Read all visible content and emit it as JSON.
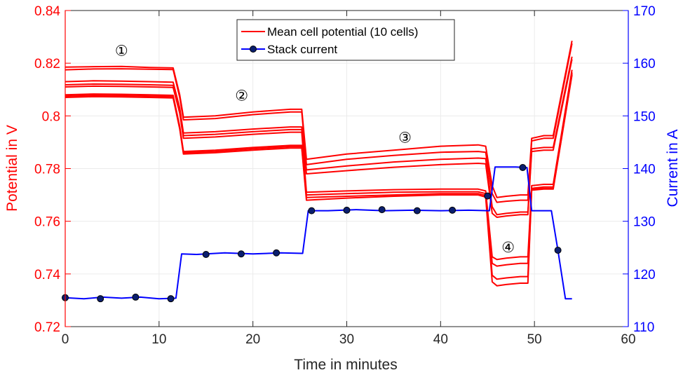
{
  "chart_data": {
    "type": "line",
    "title": "",
    "xlabel": "Time in minutes",
    "ylabel_left": "Potential in V",
    "ylabel_right": "Current in A",
    "xlim": [
      0,
      60
    ],
    "ylim_left": [
      0.72,
      0.84
    ],
    "ylim_right": [
      110,
      170
    ],
    "x_ticks": [
      "0",
      "10",
      "20",
      "30",
      "40",
      "50",
      "60"
    ],
    "y_left_ticks": [
      "0.72",
      "0.74",
      "0.76",
      "0.78",
      "0.8",
      "0.82",
      "0.84"
    ],
    "y_right_ticks": [
      "110",
      "120",
      "130",
      "140",
      "150",
      "160",
      "170"
    ],
    "x_tick_values": [
      0,
      10,
      20,
      30,
      40,
      50,
      60
    ],
    "y_left_tick_values": [
      0.72,
      0.74,
      0.76,
      0.78,
      0.8,
      0.82,
      0.84
    ],
    "y_right_tick_values": [
      110,
      120,
      130,
      140,
      150,
      160,
      170
    ],
    "grid": true,
    "legend_position": "top-center",
    "colors": {
      "potential": "#ff0000",
      "current": "#0000ff",
      "marker_fill": "#0a1e6e",
      "grid": "#ebebeb",
      "axis": "#262626"
    },
    "legend": [
      {
        "label": "Mean cell potential (10 cells)",
        "series": "potential"
      },
      {
        "label": "Stack current",
        "series": "current"
      }
    ],
    "annotations": [
      {
        "text": "①",
        "x": 6,
        "y": 0.8228
      },
      {
        "text": "②",
        "x": 18.8,
        "y": 0.8058
      },
      {
        "text": "③",
        "x": 36.2,
        "y": 0.7898
      },
      {
        "text": "④",
        "x": 47.2,
        "y": 0.7482
      }
    ],
    "potential_series": [
      {
        "name": "cell 1",
        "x": [
          0,
          3,
          6,
          9,
          11.5,
          12.2,
          12.6,
          16,
          20,
          24,
          25.2,
          25.7,
          30,
          35,
          40,
          44,
          44.8,
          45.5,
          46,
          47,
          48.5,
          49.3,
          49.7,
          51,
          52,
          54
        ],
        "y": [
          0.8185,
          0.8187,
          0.8188,
          0.8184,
          0.8182,
          0.808,
          0.7995,
          0.8,
          0.8015,
          0.8025,
          0.8025,
          0.7835,
          0.7855,
          0.787,
          0.7885,
          0.789,
          0.7885,
          0.7735,
          0.769,
          0.7695,
          0.77,
          0.77,
          0.7915,
          0.7925,
          0.7925,
          0.8285
        ]
      },
      {
        "name": "cell 2",
        "x": [
          0,
          3,
          6,
          9,
          11.5,
          12.2,
          12.6,
          16,
          20,
          24,
          25.2,
          25.7,
          30,
          35,
          40,
          44,
          44.8,
          45.5,
          46,
          47,
          48.5,
          49.3,
          49.7,
          51,
          52,
          54
        ],
        "y": [
          0.8175,
          0.8178,
          0.8179,
          0.8177,
          0.8176,
          0.807,
          0.7985,
          0.799,
          0.8005,
          0.8015,
          0.8015,
          0.7815,
          0.7835,
          0.785,
          0.7862,
          0.7865,
          0.7862,
          0.7705,
          0.7672,
          0.7676,
          0.768,
          0.768,
          0.7905,
          0.7915,
          0.7915,
          0.8275
        ]
      },
      {
        "name": "cell 3",
        "x": [
          0,
          3,
          6,
          9,
          11.5,
          12.2,
          12.6,
          16,
          20,
          24,
          25.2,
          25.7,
          30,
          35,
          40,
          44,
          44.8,
          45.5,
          46,
          47,
          48.5,
          49.3,
          49.7,
          51,
          52,
          54
        ],
        "y": [
          0.813,
          0.8133,
          0.8132,
          0.813,
          0.8128,
          0.803,
          0.7935,
          0.794,
          0.795,
          0.7958,
          0.7958,
          0.7795,
          0.781,
          0.7825,
          0.7835,
          0.784,
          0.7838,
          0.7655,
          0.7625,
          0.763,
          0.7635,
          0.7635,
          0.7875,
          0.788,
          0.788,
          0.8225
        ]
      },
      {
        "name": "cell 4",
        "x": [
          0,
          3,
          6,
          9,
          11.5,
          12.2,
          12.6,
          16,
          20,
          24,
          25.2,
          25.7,
          30,
          35,
          40,
          44,
          44.8,
          45.5,
          46,
          47,
          48.5,
          49.3,
          49.7,
          51,
          52,
          54
        ],
        "y": [
          0.8118,
          0.8121,
          0.812,
          0.8118,
          0.8116,
          0.802,
          0.7925,
          0.793,
          0.794,
          0.7948,
          0.7948,
          0.778,
          0.7792,
          0.7805,
          0.7815,
          0.782,
          0.7818,
          0.763,
          0.7615,
          0.762,
          0.7625,
          0.7625,
          0.7865,
          0.787,
          0.787,
          0.8215
        ]
      },
      {
        "name": "cell 5",
        "x": [
          0,
          3,
          6,
          9,
          11.5,
          12.2,
          12.6,
          16,
          20,
          24,
          25.2,
          25.7,
          30,
          35,
          40,
          44,
          44.8,
          45.5,
          46,
          47,
          48.5,
          49.3,
          49.7,
          51,
          52,
          54
        ],
        "y": [
          0.811,
          0.8113,
          0.8112,
          0.811,
          0.8108,
          0.801,
          0.7915,
          0.792,
          0.793,
          0.7938,
          0.7938,
          0.771,
          0.7715,
          0.772,
          0.7722,
          0.7722,
          0.7715,
          0.7465,
          0.7455,
          0.746,
          0.7465,
          0.7465,
          0.7735,
          0.774,
          0.774,
          0.8175
        ]
      },
      {
        "name": "cell 6",
        "x": [
          0,
          3,
          6,
          9,
          11.5,
          12.2,
          12.6,
          16,
          20,
          24,
          25.2,
          25.7,
          30,
          35,
          40,
          44,
          44.8,
          45.5,
          46,
          47,
          48.5,
          49.3,
          49.7,
          51,
          52,
          54
        ],
        "y": [
          0.808,
          0.8083,
          0.8082,
          0.808,
          0.8078,
          0.796,
          0.7865,
          0.787,
          0.788,
          0.7888,
          0.7888,
          0.77,
          0.7705,
          0.771,
          0.7712,
          0.7712,
          0.7705,
          0.744,
          0.743,
          0.7435,
          0.744,
          0.744,
          0.7725,
          0.773,
          0.773,
          0.8165
        ]
      },
      {
        "name": "cell 7",
        "x": [
          0,
          3,
          6,
          9,
          11.5,
          12.2,
          12.6,
          16,
          20,
          24,
          25.2,
          25.7,
          30,
          35,
          40,
          44,
          44.8,
          45.5,
          46,
          47,
          48.5,
          49.3,
          49.7,
          51,
          52,
          54
        ],
        "y": [
          0.8075,
          0.8078,
          0.8077,
          0.8075,
          0.8073,
          0.7955,
          0.786,
          0.7865,
          0.7875,
          0.7883,
          0.7883,
          0.769,
          0.7695,
          0.77,
          0.7705,
          0.7705,
          0.7698,
          0.7395,
          0.738,
          0.7385,
          0.739,
          0.739,
          0.7722,
          0.7725,
          0.7725,
          0.816
        ]
      },
      {
        "name": "cell 8",
        "x": [
          0,
          3,
          6,
          9,
          11.5,
          12.2,
          12.6,
          16,
          20,
          24,
          25.2,
          25.7,
          30,
          35,
          40,
          44,
          44.8,
          45.5,
          46,
          47,
          48.5,
          49.3,
          49.7,
          51,
          52,
          54
        ],
        "y": [
          0.807,
          0.8073,
          0.8072,
          0.807,
          0.8068,
          0.795,
          0.7855,
          0.786,
          0.787,
          0.7878,
          0.7878,
          0.768,
          0.7688,
          0.7695,
          0.77,
          0.77,
          0.7692,
          0.737,
          0.7355,
          0.736,
          0.7365,
          0.7365,
          0.7718,
          0.7722,
          0.7722,
          0.8155
        ]
      }
    ],
    "current_series": {
      "name": "Stack current",
      "x": [
        0,
        2,
        4,
        6,
        8,
        10,
        11.8,
        12.4,
        14,
        17,
        20,
        23,
        25.3,
        25.9,
        28,
        31,
        34,
        37,
        40,
        43,
        45.2,
        45.8,
        48,
        49.2,
        49.7,
        51.8,
        52.5,
        53.3,
        54
      ],
      "y": [
        115.5,
        115.3,
        115.6,
        115.4,
        115.6,
        115.3,
        115.4,
        123.8,
        123.7,
        124.0,
        123.8,
        124.0,
        123.9,
        132.0,
        132.0,
        132.2,
        132.0,
        132.1,
        132.0,
        132.1,
        132.0,
        140.3,
        140.3,
        140.2,
        132.0,
        132.0,
        124.5,
        115.3,
        115.3
      ]
    },
    "current_markers": {
      "x": [
        0,
        3.75,
        7.5,
        11.25,
        15,
        18.75,
        22.5,
        26.25,
        30,
        33.75,
        37.5,
        41.25,
        45,
        48.75,
        52.5
      ],
      "y": [
        115.5,
        115.3,
        115.6,
        115.3,
        123.7,
        123.8,
        124.0,
        132.0,
        132.1,
        132.2,
        132.0,
        132.1,
        134.8,
        140.2,
        124.5
      ]
    }
  }
}
